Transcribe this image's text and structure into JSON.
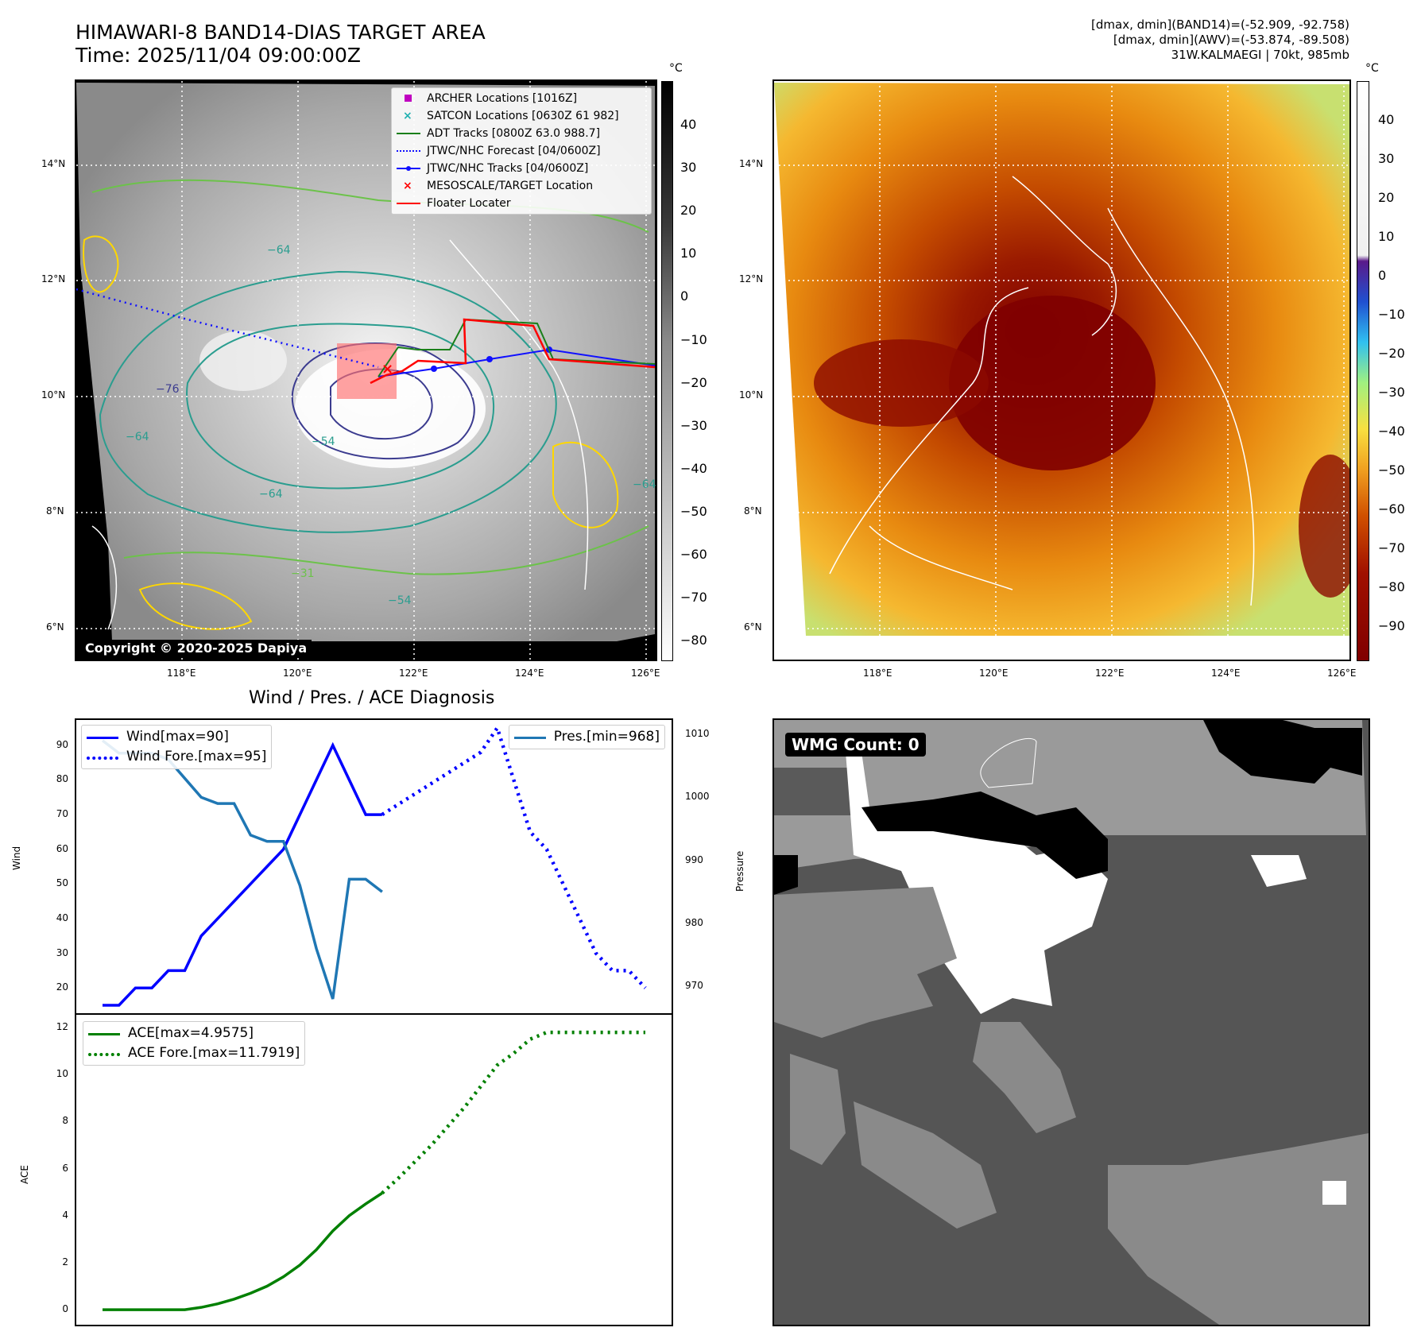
{
  "panel_ir": {
    "title_line1": "HIMAWARI-8 BAND14-DIAS TARGET AREA",
    "title_line2": "Time: 2025/11/04 09:00:00Z",
    "unit": "°C",
    "lat_ticks": [
      "14°N",
      "12°N",
      "10°N",
      "8°N",
      "6°N"
    ],
    "lon_ticks": [
      "118°E",
      "120°E",
      "122°E",
      "124°E",
      "126°E"
    ],
    "cbar_ticks": [
      "40",
      "30",
      "20",
      "10",
      "0",
      "−10",
      "−20",
      "−30",
      "−40",
      "−50",
      "−60",
      "−70",
      "−80"
    ],
    "contour_labels": [
      "−64",
      "−64",
      "−76",
      "−64",
      "−54",
      "−54",
      "−31",
      "−64"
    ],
    "copyright": "Copyright © 2020-2025 Dapiya",
    "legend": [
      {
        "label": "ARCHER Locations [1016Z]",
        "color": "#c000c0",
        "style": "square"
      },
      {
        "label": "SATCON Locations [0630Z 61 982]",
        "color": "#20b0b0",
        "style": "x"
      },
      {
        "label": "ADT Tracks [0800Z 63.0 988.7]",
        "color": "#1a7f1a",
        "style": "line"
      },
      {
        "label": "JTWC/NHC Forecast [04/0600Z]",
        "color": "#1010ff",
        "style": "dotted"
      },
      {
        "label": "JTWC/NHC Tracks [04/0600Z]",
        "color": "#1010ff",
        "style": "linedot"
      },
      {
        "label": "MESOSCALE/TARGET Location",
        "color": "#ff0000",
        "style": "x"
      },
      {
        "label": "Floater Locater",
        "color": "#ff0000",
        "style": "line"
      }
    ]
  },
  "panel_awv": {
    "info_line1": "[dmax, dmin](BAND14)=(-52.909, -92.758)",
    "info_line2": "[dmax, dmin](AWV)=(-53.874, -89.508)",
    "info_line3": "31W.KALMAEGI | 70kt, 985mb",
    "unit": "°C",
    "lat_ticks": [
      "14°N",
      "12°N",
      "10°N",
      "8°N",
      "6°N"
    ],
    "lon_ticks": [
      "118°E",
      "120°E",
      "122°E",
      "124°E",
      "126°E"
    ],
    "cbar_ticks": [
      "40",
      "30",
      "20",
      "10",
      "0",
      "−10",
      "−20",
      "−30",
      "−40",
      "−50",
      "−60",
      "−70",
      "−80",
      "−90"
    ]
  },
  "panel_wmg": {
    "label": "WMG Count: 0"
  },
  "chart_data": [
    {
      "type": "line",
      "title": "Wind / Pres. / ACE Diagnosis",
      "xlabel": "",
      "ylabel": "Wind",
      "ylim": [
        15,
        95
      ],
      "y_ticks": [
        "90",
        "80",
        "70",
        "60",
        "50",
        "40",
        "30",
        "20"
      ],
      "series": [
        {
          "name": "Wind[max=90]",
          "style": "solid",
          "color": "#0000ff",
          "x": [
            0,
            1,
            2,
            3,
            4,
            5,
            6,
            7,
            8,
            9,
            10,
            11,
            12,
            13,
            14,
            15,
            16,
            17
          ],
          "values": [
            15,
            15,
            20,
            20,
            25,
            25,
            35,
            40,
            45,
            50,
            55,
            60,
            70,
            80,
            90,
            80,
            70,
            70
          ]
        },
        {
          "name": "Wind Fore.[max=95]",
          "style": "dotted",
          "color": "#0000ff",
          "x": [
            17,
            18,
            19,
            20,
            21,
            22,
            23,
            24,
            25,
            26,
            27,
            28,
            29,
            30,
            31,
            32,
            33
          ],
          "values": [
            70,
            73,
            76,
            79,
            82,
            85,
            88,
            95,
            80,
            65,
            60,
            50,
            40,
            30,
            25,
            25,
            20
          ]
        }
      ]
    },
    {
      "type": "line",
      "ylabel": "Pressure",
      "ylim": [
        967,
        1011
      ],
      "y_ticks": [
        "1010",
        "1000",
        "990",
        "980",
        "970"
      ],
      "series": [
        {
          "name": "Pres.[min=968]",
          "style": "solid",
          "color": "#1f77b4",
          "x": [
            0,
            1,
            2,
            3,
            4,
            5,
            6,
            7,
            8,
            9,
            10,
            11,
            12,
            13,
            14,
            15,
            16,
            17
          ],
          "values": [
            1009,
            1007,
            1007,
            1007,
            1006,
            1003,
            1000,
            999,
            999,
            994,
            993,
            993,
            986,
            976,
            968,
            987,
            987,
            985
          ]
        }
      ]
    },
    {
      "type": "line",
      "ylabel": "ACE",
      "ylim": [
        -0.3,
        12.2
      ],
      "y_ticks": [
        "12",
        "10",
        "8",
        "6",
        "4",
        "2",
        "0"
      ],
      "series": [
        {
          "name": "ACE[max=4.9575]",
          "style": "solid",
          "color": "#008000",
          "x": [
            0,
            1,
            2,
            3,
            4,
            5,
            6,
            7,
            8,
            9,
            10,
            11,
            12,
            13,
            14,
            15,
            16,
            17
          ],
          "values": [
            0,
            0,
            0,
            0,
            0,
            0,
            0.1,
            0.25,
            0.45,
            0.7,
            1.0,
            1.4,
            1.9,
            2.55,
            3.35,
            4.0,
            4.5,
            4.9575
          ]
        },
        {
          "name": "ACE Fore.[max=11.7919]",
          "style": "dotted",
          "color": "#008000",
          "x": [
            17,
            18,
            19,
            20,
            21,
            22,
            23,
            24,
            25,
            26,
            27,
            28,
            29,
            30,
            31,
            32,
            33
          ],
          "values": [
            4.9575,
            5.6,
            6.3,
            7.0,
            7.8,
            8.6,
            9.5,
            10.4,
            10.9,
            11.5,
            11.79,
            11.79,
            11.79,
            11.79,
            11.79,
            11.79,
            11.79
          ]
        }
      ]
    }
  ]
}
